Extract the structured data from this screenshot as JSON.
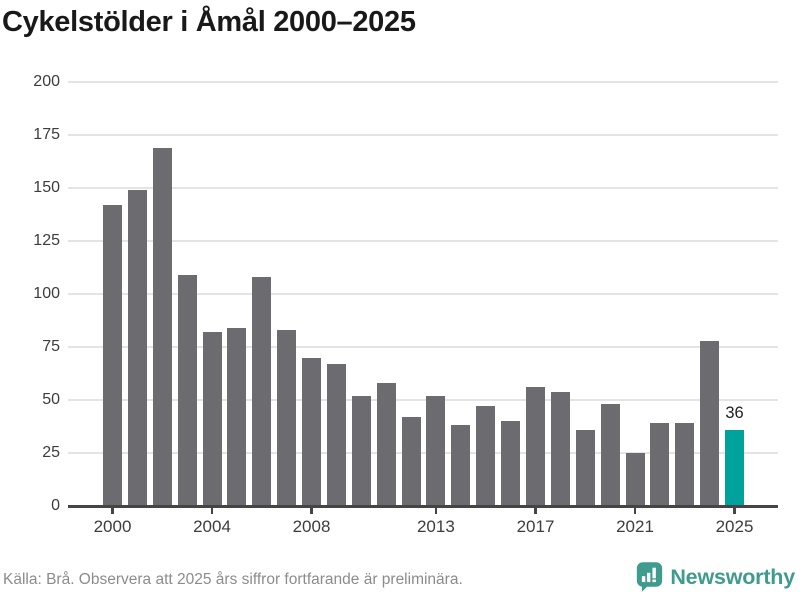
{
  "title": "Cykelstölder i Åmål 2000–2025",
  "chart_data": {
    "type": "bar",
    "title": "Cykelstölder i Åmål 2000–2025",
    "x": [
      2000,
      2001,
      2002,
      2003,
      2004,
      2005,
      2006,
      2007,
      2008,
      2009,
      2010,
      2011,
      2012,
      2013,
      2014,
      2015,
      2016,
      2017,
      2018,
      2019,
      2020,
      2021,
      2022,
      2023,
      2024,
      2025
    ],
    "values": [
      142,
      149,
      169,
      109,
      82,
      84,
      108,
      83,
      70,
      67,
      52,
      58,
      42,
      52,
      38,
      47,
      40,
      56,
      54,
      36,
      48,
      25,
      39,
      39,
      78,
      36
    ],
    "highlight": {
      "year": 2025,
      "value_label": "36"
    },
    "ylim": [
      0,
      200
    ],
    "yticks": [
      0,
      25,
      50,
      75,
      100,
      125,
      150,
      175,
      200
    ],
    "xticks": [
      2000,
      2004,
      2008,
      2013,
      2017,
      2021,
      2025
    ],
    "grid": "horizontal",
    "legend": "none",
    "colors": {
      "bar": "#6b6b70",
      "highlight": "#00a39b",
      "gridline": "#e4e4e4",
      "axis": "#454545"
    }
  },
  "footer": {
    "source_note": "Källa: Brå. Observera att 2025 års siffror fortfarande är preliminära.",
    "brand": {
      "name": "Newsworthy",
      "color": "#3f9b8e"
    }
  }
}
